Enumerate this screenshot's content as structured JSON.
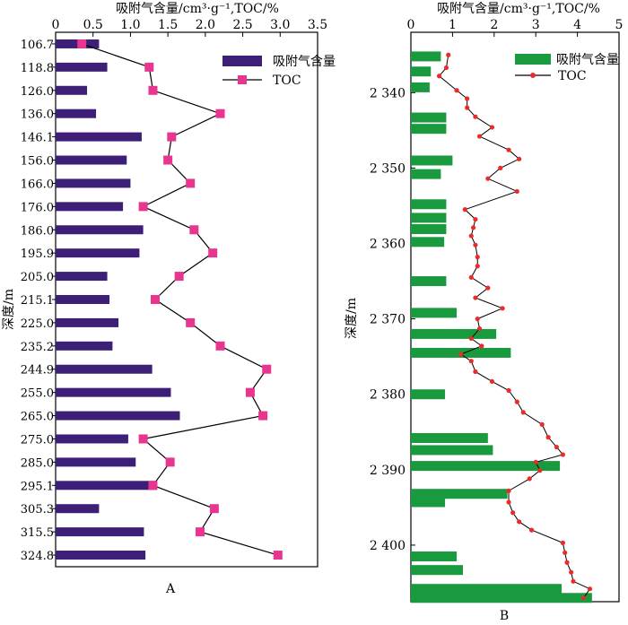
{
  "colors": {
    "bar_a": "#3d1f78",
    "bar_b": "#1a9a3e",
    "toc_marker_a": "#e8358f",
    "toc_marker_b": "#e82c2c",
    "line": "#000000"
  },
  "chart_data": [
    {
      "type": "bar",
      "orientation": "horizontal",
      "panel_label": "A",
      "xlabel": "吸附气含量/cm³·g⁻¹,TOC/%",
      "ylabel": "深度/m",
      "xlim": [
        0,
        3.5
      ],
      "x_ticks": [
        "0",
        "0.5",
        "1.0",
        "1.5",
        "2.0",
        "2.5",
        "3.0",
        "3.5"
      ],
      "categories": [
        "106.7",
        "118.8",
        "126.0",
        "136.0",
        "146.1",
        "156.0",
        "166.0",
        "176.0",
        "186.0",
        "195.9",
        "205.0",
        "215.1",
        "225.0",
        "235.2",
        "244.9",
        "255.0",
        "265.0",
        "275.0",
        "285.0",
        "295.1",
        "305.3",
        "315.5",
        "324.8"
      ],
      "series": [
        {
          "name": "吸附气含量",
          "kind": "bar",
          "values": [
            0.58,
            0.69,
            0.42,
            0.54,
            1.15,
            0.95,
            1.0,
            0.9,
            1.17,
            1.12,
            0.69,
            0.72,
            0.84,
            0.76,
            1.29,
            1.54,
            1.66,
            0.97,
            1.07,
            1.35,
            0.58,
            1.18,
            1.2
          ]
        },
        {
          "name": "TOC",
          "kind": "line-marker",
          "values": [
            0.35,
            1.25,
            1.3,
            2.2,
            1.55,
            1.5,
            1.8,
            1.17,
            1.85,
            2.1,
            1.65,
            1.33,
            1.8,
            2.2,
            2.82,
            2.6,
            2.77,
            1.17,
            1.53,
            1.3,
            2.12,
            1.93,
            2.97
          ]
        }
      ],
      "legend_position": "top-right",
      "grid": false
    },
    {
      "type": "bar",
      "orientation": "horizontal",
      "panel_label": "B",
      "xlabel": "吸附气含量/cm³·g⁻¹,TOC/%",
      "ylabel": "深度/m",
      "xlim": [
        0,
        5
      ],
      "ylim": [
        2332,
        2407.5
      ],
      "x_ticks": [
        "0",
        "1",
        "2",
        "3",
        "4",
        "5"
      ],
      "y_ticks": [
        2340,
        2350,
        2360,
        2370,
        2380,
        2390,
        2400
      ],
      "y_tick_labels": [
        "2 340",
        "2 350",
        "2 360",
        "2 370",
        "2 380",
        "2 390",
        "2 400"
      ],
      "series": [
        {
          "name": "吸附气含量",
          "kind": "bar",
          "depths": [
            2335.2,
            2337.2,
            2339.3,
            2343.3,
            2344.8,
            2349.0,
            2350.8,
            2354.8,
            2356.6,
            2358.1,
            2359.8,
            2365.0,
            2369.2,
            2372.0,
            2374.5,
            2380.0,
            2385.8,
            2387.4,
            2389.5,
            2393.2,
            2394.3,
            2401.5,
            2403.3,
            2405.8,
            2407.0
          ],
          "values": [
            0.72,
            0.48,
            0.45,
            0.85,
            0.85,
            1.0,
            0.72,
            0.85,
            0.85,
            0.85,
            0.8,
            0.85,
            1.1,
            2.05,
            2.4,
            0.82,
            1.85,
            1.97,
            3.58,
            2.32,
            0.82,
            1.1,
            1.25,
            3.62,
            4.35
          ]
        },
        {
          "name": "TOC",
          "kind": "line-marker",
          "depths": [
            2335.0,
            2336.7,
            2337.8,
            2339.7,
            2340.8,
            2342.0,
            2343.2,
            2344.6,
            2345.8,
            2347.6,
            2348.8,
            2350.0,
            2351.4,
            2353.1,
            2355.5,
            2356.8,
            2357.9,
            2359.0,
            2360.2,
            2361.8,
            2363.0,
            2364.5,
            2365.9,
            2367.2,
            2368.6,
            2370.0,
            2371.3,
            2372.6,
            2373.6,
            2374.7,
            2375.6,
            2377.0,
            2378.3,
            2379.5,
            2381.0,
            2382.4,
            2384.0,
            2385.7,
            2387.0,
            2388.0,
            2389.0,
            2390.1,
            2391.2,
            2392.8,
            2394.3,
            2395.7,
            2396.9,
            2398.0,
            2399.7,
            2401.0,
            2402.3,
            2403.6,
            2404.8,
            2405.8,
            2407.0
          ],
          "values": [
            0.9,
            0.85,
            0.68,
            1.1,
            1.35,
            1.35,
            1.55,
            1.95,
            1.65,
            2.35,
            2.6,
            2.15,
            1.85,
            2.55,
            1.3,
            1.55,
            1.5,
            1.45,
            1.55,
            1.6,
            1.6,
            1.45,
            1.85,
            1.55,
            2.2,
            1.6,
            1.65,
            1.45,
            1.7,
            1.2,
            1.45,
            1.55,
            1.95,
            2.35,
            2.55,
            2.7,
            3.15,
            3.3,
            3.5,
            3.65,
            3.0,
            3.1,
            2.85,
            2.35,
            2.35,
            2.45,
            2.6,
            2.9,
            3.65,
            3.7,
            3.75,
            3.85,
            3.9,
            4.3,
            4.15
          ]
        }
      ],
      "legend_position": "top-right",
      "grid": false
    }
  ]
}
